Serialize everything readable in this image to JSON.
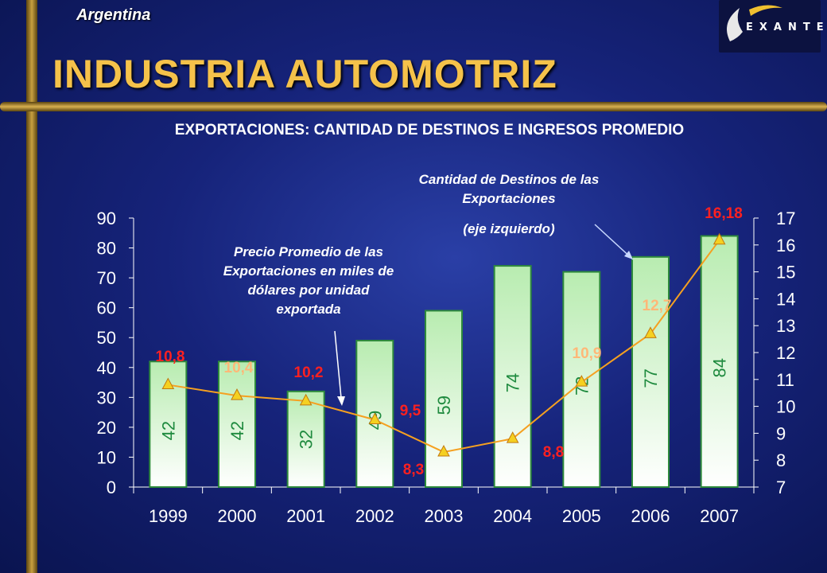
{
  "header": {
    "country": "Argentina",
    "title": "INDUSTRIA AUTOMOTRIZ",
    "logo_text": "EXANTE"
  },
  "chart_data": {
    "type": "bar",
    "title": "EXPORTACIONES: CANTIDAD DE DESTINOS E INGRESOS PROMEDIO",
    "categories": [
      "1999",
      "2000",
      "2001",
      "2002",
      "2003",
      "2004",
      "2005",
      "2006",
      "2007"
    ],
    "ylim": [
      0,
      90
    ],
    "y2lim": [
      7,
      17
    ],
    "y_ticks": [
      0,
      10,
      20,
      30,
      40,
      50,
      60,
      70,
      80,
      90
    ],
    "y2_ticks": [
      7,
      8,
      9,
      10,
      11,
      12,
      13,
      14,
      15,
      16,
      17
    ],
    "series": [
      {
        "type": "bar",
        "axis": "left",
        "values": [
          42,
          42,
          32,
          49,
          59,
          74,
          72,
          77,
          84
        ],
        "labels": [
          "42",
          "42",
          "32",
          "49",
          "59",
          "74",
          "72",
          "77",
          "84"
        ]
      },
      {
        "type": "line",
        "axis": "right",
        "values": [
          10.8,
          10.4,
          10.2,
          9.5,
          8.3,
          8.8,
          10.9,
          12.7,
          16.18
        ],
        "labels": [
          "10,8",
          "10,4",
          "10,2",
          "9,5",
          "8,3",
          "8,8",
          "10,9",
          "12,7",
          "16,18"
        ]
      }
    ],
    "annotations": {
      "bars": [
        "Cantidad de Destinos de las",
        "Exportaciones",
        "(eje izquierdo)"
      ],
      "line": [
        "Precio Promedio de las",
        "Exportaciones en miles de",
        "dólares por unidad",
        "exportada"
      ]
    },
    "colors": {
      "bar_top": "#b8ecb0",
      "bar_bottom": "#ffffff",
      "bar_border": "#2e8a3c",
      "bar_label": "#1e8a3e",
      "line": "#f5a020",
      "marker": "#f5d020",
      "line_label_dark": "#ff2020",
      "line_label_light": "#ffb878",
      "axis_text": "#ffffff"
    }
  }
}
